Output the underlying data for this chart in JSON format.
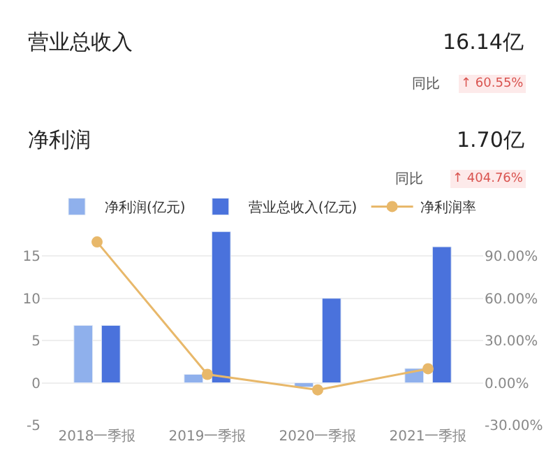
{
  "chart_data": {
    "type": "bar",
    "annotations": [
      "营业总收入",
      "16.14亿",
      "同比",
      "↑ 60.55%",
      "净利润",
      "1.70亿",
      "同比",
      "↑ 404.76%"
    ],
    "categories": [
      "2018一季报",
      "2019一季报",
      "2020一季报",
      "2021一季报"
    ],
    "series": [
      {
        "name": "净利润(亿元)",
        "color": "#8fb0ec",
        "values": [
          6.8,
          1.0,
          -0.5,
          1.7
        ]
      },
      {
        "name": "营业总收入(亿元)",
        "color": "#4a72dc",
        "values": [
          6.8,
          17.9,
          10.0,
          16.1
        ]
      },
      {
        "name": "净利润率",
        "type": "line",
        "axis": "y2",
        "color": "#e8b86a",
        "marker": "circle",
        "values": [
          100,
          6,
          -5,
          10
        ]
      }
    ],
    "ylim": [
      -5,
      18
    ],
    "yticks": [
      -5,
      0,
      5,
      10,
      15
    ],
    "y2lim": [
      -30,
      108
    ],
    "y2ticks": [
      {
        "value": -30,
        "label": "-30.00%"
      },
      {
        "value": 0,
        "label": "0.00%"
      },
      {
        "value": 30,
        "label": "30.00%"
      },
      {
        "value": 60,
        "label": "60.00%"
      },
      {
        "value": 90,
        "label": "90.00%"
      }
    ],
    "grid": "y",
    "legend": "top right"
  }
}
